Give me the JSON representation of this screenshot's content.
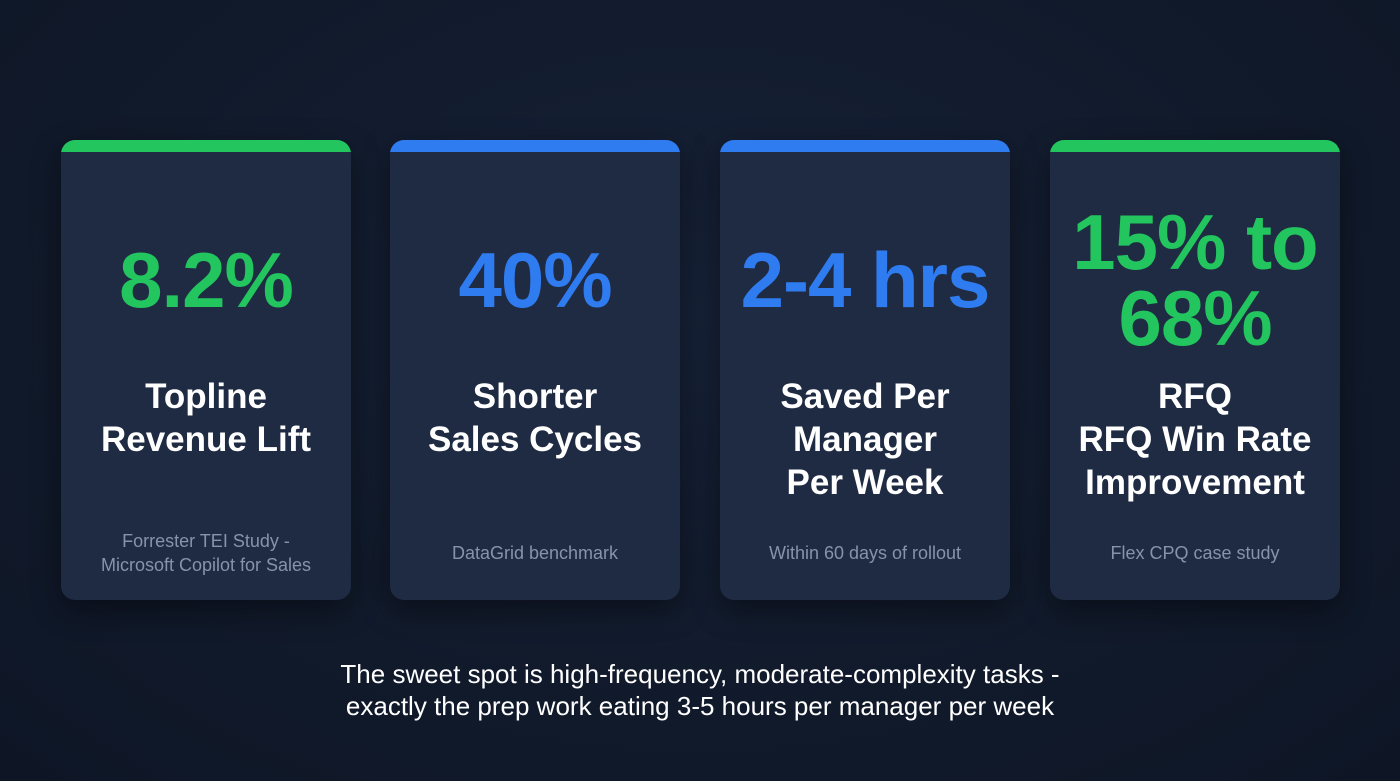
{
  "colors": {
    "green": "#22c55e",
    "blue": "#2f7cf0"
  },
  "cards": [
    {
      "value": "8.2%",
      "title": "Topline\nRevenue Lift",
      "source": "Forrester TEI Study -\nMicrosoft Copilot for Sales",
      "accent": "#22c55e"
    },
    {
      "value": "40%",
      "title": "Shorter\nSales Cycles",
      "source": "DataGrid benchmark",
      "accent": "#2f7cf0"
    },
    {
      "value": "2-4 hrs",
      "title": "Saved Per\nManager\nPer Week",
      "source": "Within 60 days of rollout",
      "accent": "#2f7cf0"
    },
    {
      "value": "15% to\n68%",
      "title": "RFQ\nRFQ Win Rate\nImprovement",
      "source": "Flex CPQ case study",
      "accent": "#22c55e"
    }
  ],
  "footer": {
    "line1": "The sweet spot is high-frequency, moderate-complexity tasks -",
    "line2": "exactly the prep work eating 3-5 hours per manager per week"
  }
}
